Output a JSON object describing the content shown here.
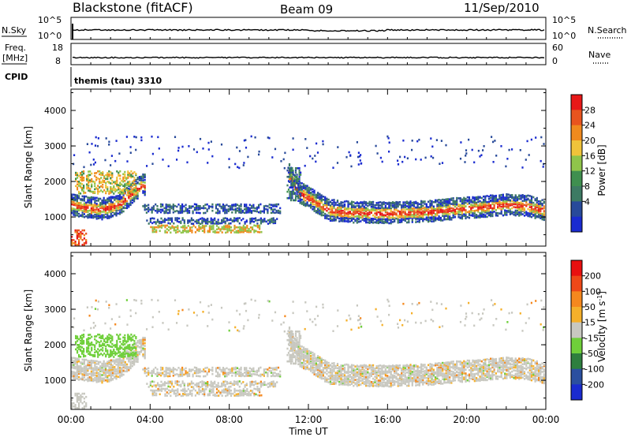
{
  "header": {
    "station": "Blackstone (fitACF)",
    "beam": "Beam 09",
    "date": "11/Sep/2010"
  },
  "panels": {
    "nsky_label": "N.Sky",
    "nsky_ticks": [
      "10^5",
      "10^0"
    ],
    "nsearch_label": "N.Search",
    "nsearch_ticks": [
      "10^5",
      "10^0"
    ],
    "freq_label_1": "Freq.",
    "freq_label_2": "[MHz]",
    "freq_ticks": [
      "18",
      "8"
    ],
    "nave_label": "Nave",
    "nave_ticks": [
      "60",
      "0"
    ],
    "cpid_label": "CPID",
    "cpid_value": "themis (tau) 3310"
  },
  "axes": {
    "y_label": "Slant Range [km]",
    "y_ticks": [
      "4000",
      "3000",
      "2000",
      "1000"
    ],
    "x_ticks": [
      "00:00",
      "04:00",
      "08:00",
      "12:00",
      "16:00",
      "20:00",
      "00:00"
    ],
    "x_label": "Time UT"
  },
  "colorbars": {
    "power_label": "Power [dB]",
    "power_ticks": [
      "28",
      "24",
      "20",
      "16",
      "12",
      "8",
      "4"
    ],
    "velocity_label": "Velocity [m s",
    "velocity_label_sup": "-1",
    "velocity_label_end": "]",
    "velocity_ticks": [
      "200",
      "100",
      "50",
      "15",
      "-15",
      "-50",
      "-100",
      "-200"
    ]
  },
  "colors": {
    "power_scale": [
      "#1a2bd0",
      "#284a9a",
      "#3d7a63",
      "#3f8f4f",
      "#8fc44a",
      "#f0c33a",
      "#f08a1e",
      "#e8541e",
      "#e81818"
    ],
    "velocity_scale": [
      "#1a2bd0",
      "#2b4fa0",
      "#2e7f3e",
      "#6fcf3a",
      "#c8c8c0",
      "#f5b02a",
      "#f5881e",
      "#ee4818",
      "#e81010"
    ],
    "ground_scatter": "#c8c8c0"
  },
  "chart_data": {
    "type": "heatmap",
    "title": "Blackstone (fitACF)",
    "xlabel": "Time UT",
    "ylabel": "Slant Range [km]",
    "xlim": [
      0,
      24
    ],
    "ylim": [
      180,
      4600
    ],
    "series": [
      {
        "name": "Power [dB]",
        "range": [
          0,
          30
        ]
      },
      {
        "name": "Velocity [m s-1]",
        "range": [
          -250,
          250
        ]
      }
    ],
    "power_trace": [
      [
        0.0,
        1350
      ],
      [
        0.5,
        1300
      ],
      [
        1.0,
        1260
      ],
      [
        1.5,
        1230
      ],
      [
        2.0,
        1280
      ],
      [
        2.5,
        1400
      ],
      [
        3.0,
        1650
      ],
      [
        3.5,
        1900
      ],
      [
        11.0,
        2200
      ],
      [
        11.5,
        1700
      ],
      [
        12.0,
        1550
      ],
      [
        12.5,
        1380
      ],
      [
        13.0,
        1200
      ],
      [
        14.0,
        1150
      ],
      [
        15.0,
        1130
      ],
      [
        16.0,
        1120
      ],
      [
        17.0,
        1140
      ],
      [
        18.0,
        1160
      ],
      [
        19.0,
        1220
      ],
      [
        20.0,
        1260
      ],
      [
        21.0,
        1300
      ],
      [
        22.0,
        1360
      ],
      [
        23.0,
        1320
      ],
      [
        24.0,
        1180
      ]
    ],
    "bands": [
      {
        "t0": 3.6,
        "t1": 10.6,
        "r0": 1150,
        "r1": 1400
      },
      {
        "t0": 3.8,
        "t1": 10.4,
        "r0": 850,
        "r1": 1000
      },
      {
        "t0": 4.0,
        "t1": 9.6,
        "r0": 600,
        "r1": 800
      }
    ]
  }
}
